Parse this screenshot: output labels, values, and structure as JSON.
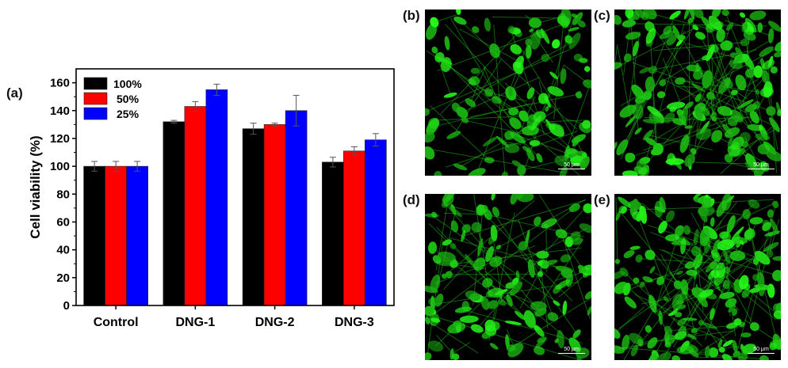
{
  "chart_data": {
    "type": "bar",
    "panel_label": "(a)",
    "categories": [
      "Control",
      "DNG-1",
      "DNG-2",
      "DNG-3"
    ],
    "series": [
      {
        "name": "100%",
        "color": "#000000",
        "values": [
          100,
          132,
          127,
          103
        ],
        "errors": [
          3.5,
          1,
          4,
          3.5
        ]
      },
      {
        "name": "50%",
        "color": "#ff0000",
        "values": [
          100,
          143,
          130,
          111
        ],
        "errors": [
          3.5,
          3.5,
          1,
          3
        ]
      },
      {
        "name": "25%",
        "color": "#0000ff",
        "values": [
          100,
          155,
          140,
          119
        ],
        "errors": [
          3.5,
          4,
          11,
          4.5
        ]
      }
    ],
    "xlabel": "",
    "ylabel": "Cell viability (%)",
    "ylim": [
      0,
      170
    ],
    "yticks": [
      0,
      20,
      40,
      60,
      80,
      100,
      120,
      140,
      160
    ],
    "legend": "top-left",
    "grid": false
  },
  "micrographs": [
    {
      "label": "(b)",
      "scale_bar": "50 μm"
    },
    {
      "label": "(c)",
      "scale_bar": "50 μm"
    },
    {
      "label": "(d)",
      "scale_bar": "50 μm"
    },
    {
      "label": "(e)",
      "scale_bar": "50 μm"
    }
  ]
}
